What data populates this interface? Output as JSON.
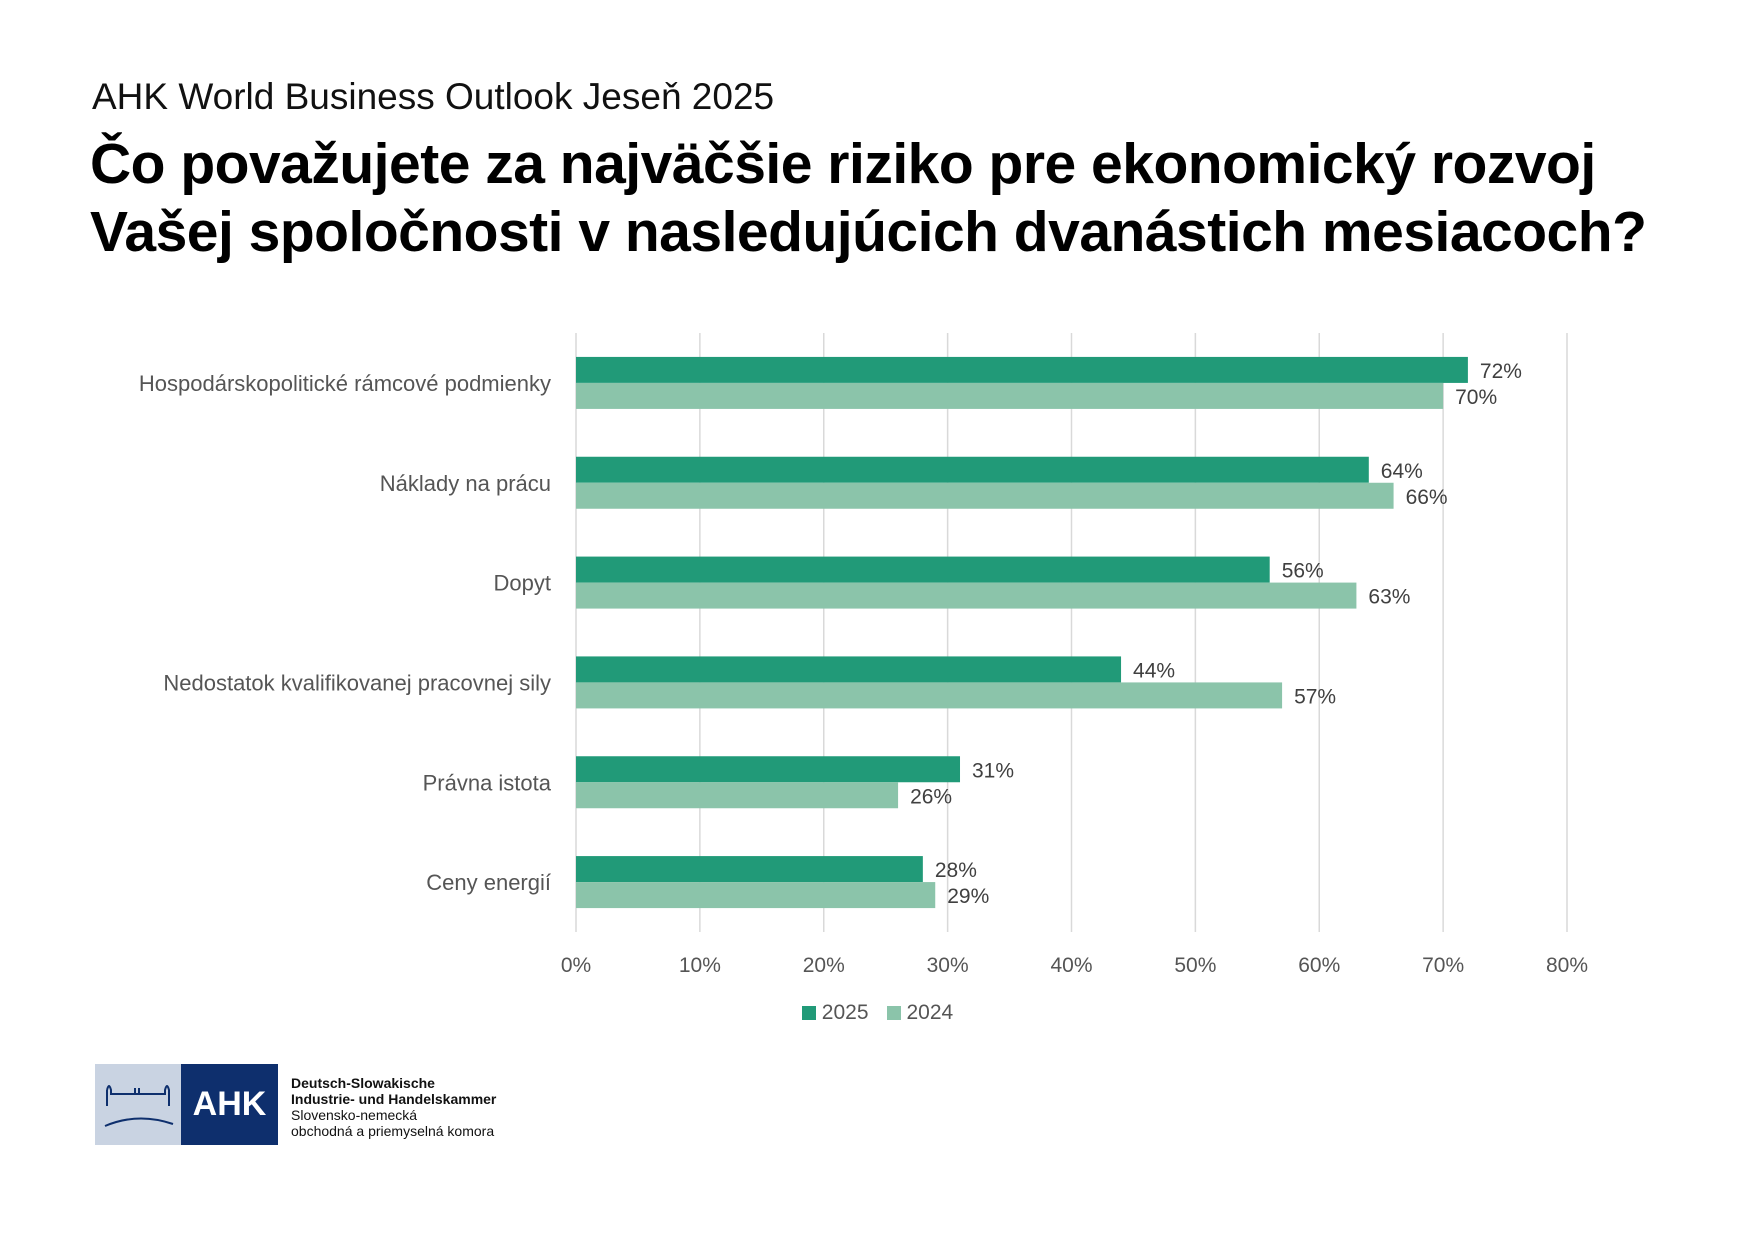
{
  "header": {
    "subtitle": "AHK World Business Outlook Jeseň 2025",
    "title_line1": "Čo považujete za najväčšie riziko pre ekonomický rozvoj",
    "title_line2": "Vašej spoločnosti v nasledujúcich dvanástich mesiacoch?"
  },
  "chart_data": {
    "type": "bar",
    "orientation": "horizontal",
    "categories": [
      "Hospodárskopolitické rámcové podmienky",
      "Náklady na prácu",
      "Dopyt",
      "Nedostatok kvalifikovanej pracovnej sily",
      "Právna istota",
      "Ceny energií"
    ],
    "series": [
      {
        "name": "2025",
        "color": "#219a78",
        "values": [
          72,
          64,
          56,
          44,
          31,
          28
        ]
      },
      {
        "name": "2024",
        "color": "#8bc4aa",
        "values": [
          70,
          66,
          63,
          57,
          26,
          29
        ]
      }
    ],
    "xlim": [
      0,
      80
    ],
    "xticks": [
      "0%",
      "10%",
      "20%",
      "30%",
      "40%",
      "50%",
      "60%",
      "70%",
      "80%"
    ],
    "value_suffix": "%",
    "grid": "vertical",
    "legend_placement": "bottom"
  },
  "logo": {
    "mark": "AHK",
    "line1": "Deutsch-Slowakische",
    "line2": "Industrie- und Handelskammer",
    "line3": "Slovensko-nemecká",
    "line4": "obchodná a priemyselná komora"
  }
}
